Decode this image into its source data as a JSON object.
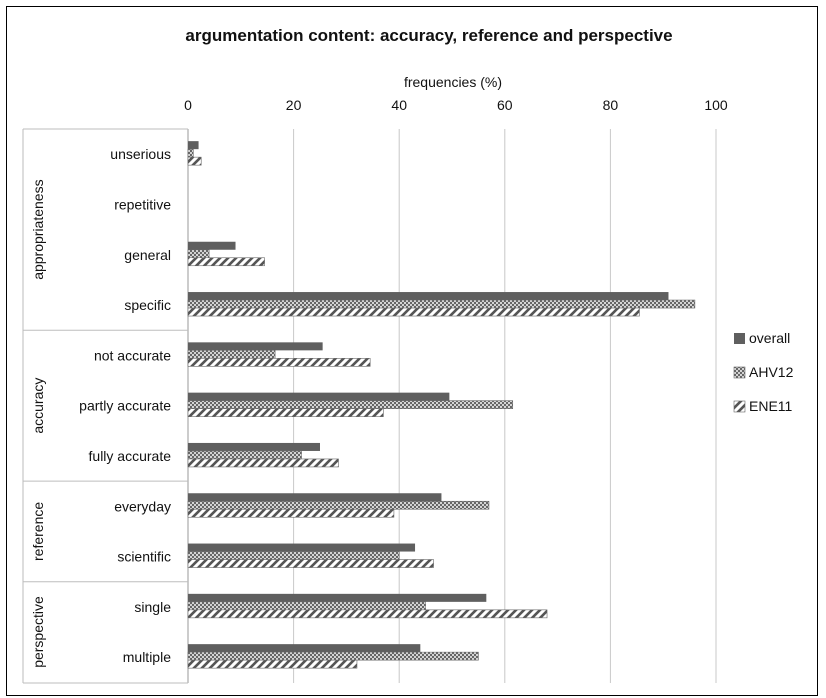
{
  "chart_data": {
    "type": "bar",
    "orientation": "horizontal",
    "title": "argumentation content: accuracy, reference and perspective",
    "xlabel": "frequencies (%)",
    "xlim": [
      0,
      100
    ],
    "xticks": [
      "0",
      "20",
      "40",
      "60",
      "80",
      "100"
    ],
    "xtick_values": [
      0,
      20,
      40,
      60,
      80,
      100
    ],
    "grid": true,
    "legend_position": "right",
    "groups": [
      {
        "name": "appropriateness",
        "categories": [
          "unserious",
          "repetitive",
          "general",
          "specific"
        ]
      },
      {
        "name": "accuracy",
        "categories": [
          "not accurate",
          "partly accurate",
          "fully accurate"
        ]
      },
      {
        "name": "reference",
        "categories": [
          "everyday",
          "scientific"
        ]
      },
      {
        "name": "perspective",
        "categories": [
          "single",
          "multiple"
        ]
      }
    ],
    "categories": [
      "unserious",
      "repetitive",
      "general",
      "specific",
      "not accurate",
      "partly accurate",
      "fully accurate",
      "everyday",
      "scientific",
      "single",
      "multiple"
    ],
    "series": [
      {
        "name": "overall",
        "pattern": "solid",
        "color": "#5f5f5f",
        "values": [
          2,
          0,
          9,
          91,
          25.5,
          49.5,
          25,
          48,
          43,
          56.5,
          44
        ]
      },
      {
        "name": "AHV12",
        "pattern": "crosshatch",
        "color": "#8c8c8c",
        "values": [
          1,
          0,
          4,
          96,
          16.5,
          61.5,
          21.5,
          57,
          40,
          45,
          55
        ]
      },
      {
        "name": "ENE11",
        "pattern": "diagonal",
        "color": "#6a6a6a",
        "values": [
          2.5,
          0,
          14.5,
          85.5,
          34.5,
          37,
          28.5,
          39,
          46.5,
          68,
          32
        ]
      }
    ]
  }
}
